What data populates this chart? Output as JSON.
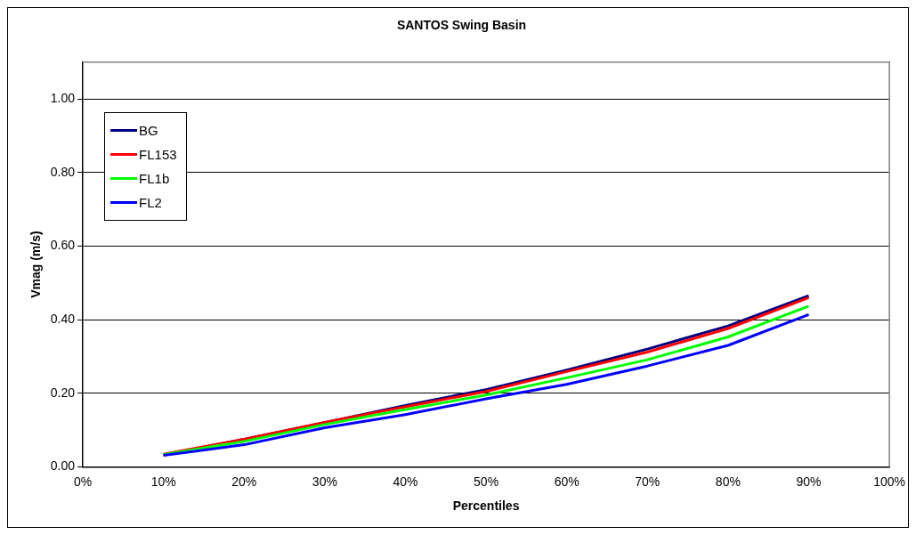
{
  "chart_data": {
    "type": "line",
    "title": "SANTOS Swing Basin",
    "xlabel": "Percentiles",
    "ylabel": "Vmag (m/s)",
    "x": [
      10,
      20,
      30,
      40,
      50,
      60,
      70,
      80,
      90
    ],
    "series": [
      {
        "name": "BG",
        "color": "#000080",
        "values": [
          0.032,
          0.075,
          0.12,
          0.167,
          0.21,
          0.263,
          0.32,
          0.383,
          0.465
        ]
      },
      {
        "name": "FL153",
        "color": "#ff0000",
        "values": [
          0.034,
          0.075,
          0.121,
          0.163,
          0.205,
          0.259,
          0.312,
          0.376,
          0.46
        ]
      },
      {
        "name": "FL1b",
        "color": "#00ff00",
        "values": [
          0.033,
          0.069,
          0.115,
          0.156,
          0.195,
          0.242,
          0.291,
          0.353,
          0.437
        ]
      },
      {
        "name": "FL2",
        "color": "#0000ff",
        "values": [
          0.031,
          0.06,
          0.106,
          0.142,
          0.185,
          0.224,
          0.274,
          0.33,
          0.414
        ]
      }
    ],
    "xlim": [
      0,
      100
    ],
    "xticks": [
      {
        "value": 0,
        "label": "0%"
      },
      {
        "value": 10,
        "label": "10%"
      },
      {
        "value": 20,
        "label": "20%"
      },
      {
        "value": 30,
        "label": "30%"
      },
      {
        "value": 40,
        "label": "40%"
      },
      {
        "value": 50,
        "label": "50%"
      },
      {
        "value": 60,
        "label": "60%"
      },
      {
        "value": 70,
        "label": "70%"
      },
      {
        "value": 80,
        "label": "80%"
      },
      {
        "value": 90,
        "label": "90%"
      },
      {
        "value": 100,
        "label": "100%"
      }
    ],
    "ylim": [
      0,
      1.1
    ],
    "yticks": [
      {
        "value": 0,
        "label": "0.00"
      },
      {
        "value": 0.2,
        "label": "0.20"
      },
      {
        "value": 0.4,
        "label": "0.40"
      },
      {
        "value": 0.6,
        "label": "0.60"
      },
      {
        "value": 0.8,
        "label": "0.80"
      },
      {
        "value": 1,
        "label": "1.00"
      }
    ],
    "grid": "y",
    "legend": "top left",
    "marker": "none",
    "line_style": "solid"
  }
}
